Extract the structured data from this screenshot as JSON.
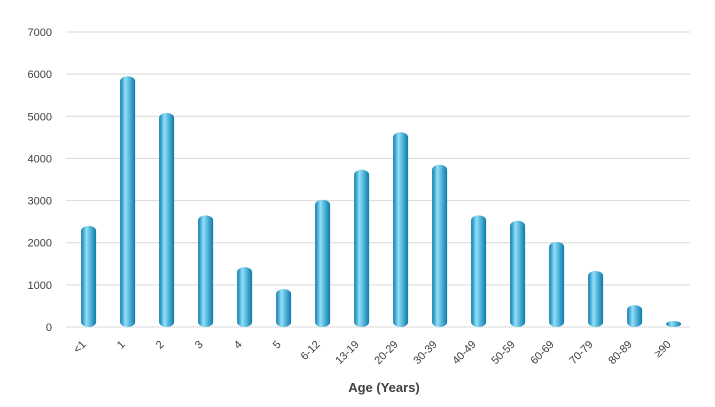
{
  "chart_data": {
    "type": "bar",
    "title": "",
    "xlabel": "Age (Years)",
    "ylabel": "",
    "categories": [
      "<1",
      "1",
      "2",
      "3",
      "4",
      "5",
      "6-12",
      "13-19",
      "20-29",
      "30-39",
      "40-49",
      "50-59",
      "60-69",
      "70-79",
      "80-89",
      "≥90"
    ],
    "values": [
      2400,
      5950,
      5080,
      2650,
      1420,
      900,
      3020,
      3730,
      4620,
      3850,
      2650,
      2520,
      2020,
      1330,
      520,
      130
    ],
    "ylim": [
      0,
      7000
    ],
    "yticks": [
      "0",
      "1000",
      "2000",
      "3000",
      "4000",
      "5000",
      "6000",
      "7000"
    ],
    "grid": true,
    "legend": "none",
    "colors": {
      "bar": "#1fa9dc",
      "bar_light": "#8fe0fa",
      "bar_dark": "#0c7bab",
      "grid": "#d9d9d9",
      "text": "#404040"
    }
  }
}
